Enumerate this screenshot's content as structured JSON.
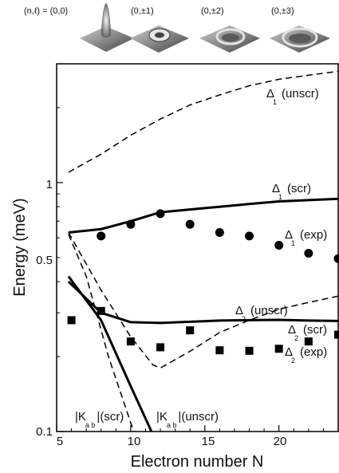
{
  "panel_labels": [
    "(n,ℓ) = (0,0)",
    "(0,±1)",
    "(0,±2)",
    "(0,±3)"
  ],
  "chart_data": {
    "type": "line",
    "xlabel": "Electron number N",
    "ylabel": "Energy (meV)",
    "xlim": [
      5,
      24
    ],
    "ylim": [
      0.1,
      3.0
    ],
    "yscale": "log",
    "xticks": [
      "5",
      "10",
      "15",
      "20"
    ],
    "yticks": [
      "0.1",
      "0.5",
      "1"
    ],
    "series": [
      {
        "name": "Δ 1 (unscr)",
        "style": "dashed",
        "x": [
          5.8,
          8,
          10,
          12,
          14,
          16,
          18,
          20,
          22,
          24
        ],
        "y": [
          1.1,
          1.3,
          1.55,
          1.8,
          2.05,
          2.25,
          2.45,
          2.6,
          2.7,
          2.8
        ]
      },
      {
        "name": "Δ 1 (scr)",
        "style": "solid",
        "x": [
          5.8,
          8,
          10,
          12,
          14,
          16,
          18,
          20,
          22,
          24
        ],
        "y": [
          0.63,
          0.65,
          0.7,
          0.76,
          0.78,
          0.8,
          0.82,
          0.84,
          0.85,
          0.86
        ]
      },
      {
        "name": "Δ 1 (exp)",
        "style": "circle",
        "x": [
          8,
          10,
          12,
          14,
          16,
          18,
          20,
          22,
          24
        ],
        "y": [
          0.61,
          0.68,
          0.75,
          0.68,
          0.63,
          0.61,
          0.56,
          0.52,
          0.495
        ]
      },
      {
        "name": "Δ 2 (unscr)",
        "style": "dashed",
        "x": [
          5.8,
          8,
          10,
          11.5,
          12,
          14,
          16,
          18,
          20,
          22,
          24
        ],
        "y": [
          0.63,
          0.37,
          0.24,
          0.185,
          0.18,
          0.21,
          0.25,
          0.28,
          0.31,
          0.33,
          0.35
        ]
      },
      {
        "name": "Δ 2 (scr)",
        "style": "solid",
        "x": [
          5.8,
          8,
          10,
          12,
          14,
          16,
          18,
          20,
          22,
          24
        ],
        "y": [
          0.4,
          0.3,
          0.275,
          0.273,
          0.276,
          0.279,
          0.28,
          0.281,
          0.279,
          0.278
        ]
      },
      {
        "name": "Δ 2 (exp)",
        "style": "square",
        "x": [
          6,
          8,
          10,
          12,
          14,
          16,
          18,
          20,
          22,
          24
        ],
        "y": [
          0.28,
          0.305,
          0.23,
          0.218,
          0.255,
          0.212,
          0.211,
          0.215,
          0.23,
          0.245
        ]
      },
      {
        "name": "|K a b|(scr)",
        "style": "solid",
        "x": [
          5.8,
          8,
          10,
          11.4
        ],
        "y": [
          0.42,
          0.28,
          0.152,
          0.1
        ]
      },
      {
        "name": "|K a b|(unscr)",
        "style": "dashed",
        "x": [
          5.8,
          7,
          8.5,
          10.2
        ],
        "y": [
          0.62,
          0.42,
          0.2,
          0.1
        ]
      }
    ],
    "annotations": [
      {
        "main": "Δ",
        "sub": "1",
        "text": "(unscr)"
      },
      {
        "main": "Δ",
        "sub": "1",
        "text": "(scr)"
      },
      {
        "main": "Δ",
        "sub": "1",
        "text": "(exp)"
      },
      {
        "main": "Δ",
        "sub": "2",
        "text": "(unscr)"
      },
      {
        "main": "Δ",
        "sub": "2",
        "text": "(scr)"
      },
      {
        "main": "Δ",
        "sub": "2",
        "text": "(exp)"
      },
      {
        "main": "|K",
        "sub": "a b",
        "text": "|(scr)"
      },
      {
        "main": "|K",
        "sub": "a b",
        "text": "|(unscr)"
      }
    ]
  }
}
